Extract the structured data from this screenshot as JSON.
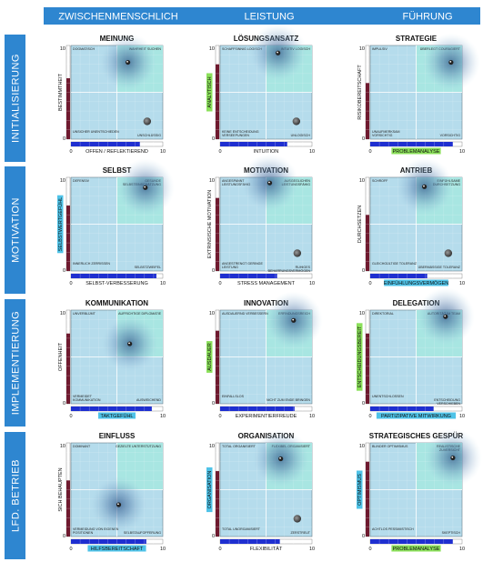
{
  "columns": [
    "ZWISCHENMENSCHLICH",
    "LEISTUNG",
    "FÜHRUNG"
  ],
  "rows": [
    "INITIALISIERUNG",
    "MOTIVATION",
    "IMPLEMENTIERUNG",
    "LFD. BETRIEB"
  ],
  "colors": {
    "header_bg": "#2e86d0",
    "plot_bg": "#b5dcec",
    "quad_top_right": "#a8e6e2",
    "vertical_bar": "#6f1a2f",
    "horizontal_bar": "#1f2fd0",
    "highlight_green": "#8be05a",
    "highlight_cyan": "#4fc3e8"
  },
  "chart_data": [
    {
      "type": "scatter",
      "title": "MEINUNG",
      "ylabel": "BESTIMMTHEIT",
      "xlabel": "OFFEN / REFLEKTIEREND",
      "ylabel_hl": "",
      "xlabel_hl": "",
      "xlim": [
        0,
        10
      ],
      "ylim": [
        0,
        10
      ],
      "y_tick_labels": [
        "10",
        "0"
      ],
      "x_tick_labels": [
        "0",
        "10"
      ],
      "corners": {
        "tl": "DOGMATISCH",
        "tr": "WAHRHEIT SUCHEN",
        "bl": "UNSICHER UNENTSCHIEDEN",
        "br": "UNSCHLÜSSIG"
      },
      "points": [
        {
          "x": 6.2,
          "y": 8.2,
          "glow": true
        },
        {
          "x": 8.3,
          "y": 1.9,
          "glow": false
        }
      ],
      "vbar": {
        "value": 6.5,
        "ticks": 10
      },
      "hbar": {
        "value": 7.5,
        "ticks": 10
      }
    },
    {
      "type": "scatter",
      "title": "LÖSUNGSANSATZ",
      "ylabel": "",
      "xlabel": "INTUITION",
      "ylabel_hl": "ANALYTISCH",
      "xlabel_hl": "",
      "xlim": [
        0,
        10
      ],
      "ylim": [
        0,
        10
      ],
      "y_tick_labels": [
        "10",
        "0"
      ],
      "x_tick_labels": [
        "0",
        "10"
      ],
      "corners": {
        "tl": "SCHAFFSINNIG LOGISCH",
        "tr": "INTUITIV LOGISCH",
        "bl": "KEINE ENTSCHEIDUNG VERSEEPUNGEN",
        "br": "UNLOGISCH"
      },
      "points": [
        {
          "x": 6.3,
          "y": 9.2,
          "glow": true
        },
        {
          "x": 8.3,
          "y": 1.9,
          "glow": false
        }
      ],
      "vbar": {
        "value": 8.0,
        "ticks": 10
      },
      "hbar": {
        "value": 7.3,
        "ticks": 10
      }
    },
    {
      "type": "scatter",
      "title": "STRATEGIE",
      "ylabel": "RISIKOBEREITSCHAFT",
      "xlabel": "",
      "ylabel_hl": "",
      "xlabel_hl": "PROBLEMANALYSE",
      "xlim": [
        0,
        10
      ],
      "ylim": [
        0,
        10
      ],
      "y_tick_labels": [
        "10",
        "0"
      ],
      "x_tick_labels": [
        "0",
        "10"
      ],
      "corners": {
        "tl": "IMPULSIV",
        "tr": "ÜBERLEGT COURAGIERT",
        "bl": "UNAUFMERKSAM VORSICHTIG",
        "br": "VORSICHTIG"
      },
      "points": [
        {
          "x": 8.8,
          "y": 8.2,
          "glow": true
        }
      ],
      "vbar": {
        "value": 6.0,
        "ticks": 10
      },
      "hbar": {
        "value": 9.0,
        "ticks": 10
      }
    },
    {
      "type": "scatter",
      "title": "SELBST",
      "ylabel": "",
      "xlabel": "SELBST-VERBESSERUNG",
      "ylabel_hl": "SELBSTWERTGEFÜHL",
      "xlabel_hl": "",
      "xlim": [
        0,
        10
      ],
      "ylim": [
        0,
        10
      ],
      "y_tick_labels": [
        "10",
        "0"
      ],
      "x_tick_labels": [
        "0",
        "10"
      ],
      "corners": {
        "tl": "DEFENSIV",
        "tr": "GESUNDE SELBSTEINSCHÄTZUNG",
        "bl": "INNERLICH ZERRISSEN",
        "br": "SELBSTZWEIFEL"
      },
      "points": [
        {
          "x": 8.1,
          "y": 8.9,
          "glow": true
        }
      ],
      "vbar": {
        "value": 7.0,
        "ticks": 10
      },
      "hbar": {
        "value": 9.3,
        "ticks": 10
      }
    },
    {
      "type": "scatter",
      "title": "MOTIVATION",
      "ylabel": "EXTRINSISCHE MOTIVATION",
      "xlabel": "STRESS MANAGEMENT",
      "ylabel_hl": "",
      "xlabel_hl": "",
      "xlim": [
        0,
        10
      ],
      "ylim": [
        0,
        10
      ],
      "y_tick_labels": [
        "10",
        "0"
      ],
      "x_tick_labels": [
        "0",
        "10"
      ],
      "corners": {
        "tl": "ANGESPANNT LEISTUNGSFÄHIG",
        "tr": "AUSGEGLICHEN LEISTUNGSFÄHIG",
        "bl": "ANGESTRENGT GERINGE LEISTUNG",
        "br": "RUHIGES BEHARRUNGSVERMÖGEN"
      },
      "points": [
        {
          "x": 5.4,
          "y": 9.4,
          "glow": true
        },
        {
          "x": 8.4,
          "y": 1.9,
          "glow": false
        }
      ],
      "vbar": {
        "value": 7.8,
        "ticks": 10
      },
      "hbar": {
        "value": 6.2,
        "ticks": 10
      }
    },
    {
      "type": "scatter",
      "title": "ANTRIEB",
      "ylabel": "DURCHSETZEN",
      "xlabel": "",
      "ylabel_hl": "",
      "xlabel_hl": "EINFÜHLUNGSVERMÖGEN",
      "xlim": [
        0,
        10
      ],
      "ylim": [
        0,
        10
      ],
      "y_tick_labels": [
        "10",
        "0"
      ],
      "x_tick_labels": [
        "0",
        "10"
      ],
      "corners": {
        "tl": "SCHROFF",
        "tr": "EINFÜHLSAME DURCHSETZUNG",
        "bl": "GLEICHGÜLTIGE TOLERANZ",
        "br": "ÜBERMÄSSIGE TOLERANZ"
      },
      "points": [
        {
          "x": 5.9,
          "y": 9.0,
          "glow": true
        },
        {
          "x": 8.5,
          "y": 1.9,
          "glow": false
        }
      ],
      "vbar": {
        "value": 6.0,
        "ticks": 10
      },
      "hbar": {
        "value": 6.2,
        "ticks": 10
      }
    },
    {
      "type": "scatter",
      "title": "KOMMUNIKATION",
      "ylabel": "OFFENHEIT",
      "xlabel": "",
      "ylabel_hl": "",
      "xlabel_hl": "TAKTGEFÜHL",
      "xlim": [
        0,
        10
      ],
      "ylim": [
        0,
        10
      ],
      "y_tick_labels": [
        "10",
        "0"
      ],
      "x_tick_labels": [
        "0",
        "10"
      ],
      "corners": {
        "tl": "UNVERBLÜMT",
        "tr": "AUFRICHTIGE DIPLOMATIE",
        "bl": "VERMEIDET KOMMUNIKATION",
        "br": "AUSWEICHEND"
      },
      "points": [
        {
          "x": 6.4,
          "y": 6.4,
          "glow": true
        }
      ],
      "vbar": {
        "value": 7.5,
        "ticks": 10
      },
      "hbar": {
        "value": 8.8,
        "ticks": 10
      }
    },
    {
      "type": "scatter",
      "title": "INNOVATION",
      "ylabel": "",
      "xlabel": "EXPERIMENTIERFREUDE",
      "ylabel_hl": "AUSDAUER",
      "xlabel_hl": "",
      "xlim": [
        0,
        10
      ],
      "ylim": [
        0,
        10
      ],
      "y_tick_labels": [
        "10",
        "0"
      ],
      "x_tick_labels": [
        "0",
        "10"
      ],
      "corners": {
        "tl": "AUSDAUERND VERBESSERN",
        "tr": "ERFINDUNGSREICH",
        "bl": "EINFALLSLOS",
        "br": "NICHT ZUM ENDE BRINGEN"
      },
      "points": [
        {
          "x": 8.0,
          "y": 8.9,
          "glow": true
        }
      ],
      "vbar": {
        "value": 7.8,
        "ticks": 10
      },
      "hbar": {
        "value": 8.1,
        "ticks": 10
      }
    },
    {
      "type": "scatter",
      "title": "DELEGATION",
      "ylabel": "",
      "xlabel": "",
      "ylabel_hl": "ENTSCHEIDUNGSBEREIT",
      "xlabel_hl": "PARTIZIPATIVE MITWIRKUNG",
      "xlim": [
        0,
        10
      ],
      "ylim": [
        0,
        10
      ],
      "y_tick_labels": [
        "10",
        "0"
      ],
      "x_tick_labels": [
        "0",
        "10"
      ],
      "corners": {
        "tl": "DIREKTORIAL",
        "tr": "AUTORITÄT IM TEAM",
        "bl": "UNENTSCHLOSSEN",
        "br": "ENTSCHEIDUNG VERSCHIEBEN"
      },
      "points": [
        {
          "x": 8.2,
          "y": 9.3,
          "glow": true
        }
      ],
      "vbar": {
        "value": 7.5,
        "ticks": 10
      },
      "hbar": {
        "value": 6.9,
        "ticks": 10
      }
    },
    {
      "type": "scatter",
      "title": "EINFLUSS",
      "ylabel": "SICH BEHAUPTEN",
      "xlabel": "",
      "ylabel_hl": "",
      "xlabel_hl": "HILFSBEREITSCHAFT",
      "xlim": [
        0,
        10
      ],
      "ylim": [
        0,
        10
      ],
      "y_tick_labels": [
        "10",
        "0"
      ],
      "x_tick_labels": [
        "0",
        "10"
      ],
      "corners": {
        "tl": "DOMINANT",
        "tr": "GEZIELTE UNTERSTÜTZUNG",
        "bl": "VERMEIDUNG VON EIGENEN POSITIONEN",
        "br": "SELBSTAUFOPFERUNG"
      },
      "points": [
        {
          "x": 5.2,
          "y": 3.4,
          "glow": true
        }
      ],
      "vbar": {
        "value": 6.0,
        "ticks": 10
      },
      "hbar": {
        "value": 8.2,
        "ticks": 10
      }
    },
    {
      "type": "scatter",
      "title": "ORGANISATION",
      "ylabel": "",
      "xlabel": "FLEXIBILITÄT",
      "ylabel_hl": "ORGANISATION",
      "xlabel_hl": "",
      "xlim": [
        0,
        10
      ],
      "ylim": [
        0,
        10
      ],
      "y_tick_labels": [
        "10",
        "0"
      ],
      "x_tick_labels": [
        "0",
        "10"
      ],
      "corners": {
        "tl": "TOTAL ORGANISIERT",
        "tr": "FLEXIBEL ORGANISIERT",
        "bl": "TOTAL UNORGANISIERT",
        "br": "ZERSTREUT"
      },
      "points": [
        {
          "x": 6.6,
          "y": 8.3,
          "glow": true
        },
        {
          "x": 8.4,
          "y": 1.9,
          "glow": false
        }
      ],
      "vbar": {
        "value": 7.0,
        "ticks": 10
      },
      "hbar": {
        "value": 6.5,
        "ticks": 10
      }
    },
    {
      "type": "scatter",
      "title": "STRATEGISCHES GESPÜR",
      "ylabel": "",
      "xlabel": "",
      "ylabel_hl": "OPTIMISMUS",
      "xlabel_hl": "PROBLEMANALYSE",
      "xlim": [
        0,
        10
      ],
      "ylim": [
        0,
        10
      ],
      "y_tick_labels": [
        "10",
        "0"
      ],
      "x_tick_labels": [
        "0",
        "10"
      ],
      "corners": {
        "tl": "BLINDER OPTIMISMUS",
        "tr": "REALISTISCHE ZUVERSICHT",
        "bl": "ACHTLOS PESSIMISTISCH",
        "br": "SKEPTISCH"
      },
      "points": [
        {
          "x": 9.0,
          "y": 8.4,
          "glow": true
        }
      ],
      "vbar": {
        "value": 8.0,
        "ticks": 10
      },
      "hbar": {
        "value": 9.0,
        "ticks": 10
      }
    }
  ]
}
